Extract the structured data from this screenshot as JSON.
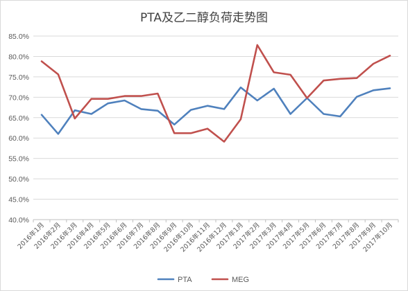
{
  "chart_data": {
    "type": "line",
    "title": "PTA及乙二醇负荷走势图",
    "xlabel": "",
    "ylabel": "",
    "ylim": [
      40,
      85
    ],
    "ytick_step": 5,
    "y_format": "percent_1dp",
    "grid": true,
    "legend_position": "bottom",
    "categories": [
      "2016年1月",
      "2016年2月",
      "2016年3月",
      "2016年4月",
      "2016年5月",
      "2016年6月",
      "2016年7月",
      "2016年8月",
      "2016年9月",
      "2016年10月",
      "2016年11月",
      "2016年12月",
      "2017年1月",
      "2017年2月",
      "2017年3月",
      "2017年4月",
      "2017年5月",
      "2017年6月",
      "2017年7月",
      "2017年8月",
      "2017年9月",
      "2017年10月"
    ],
    "series": [
      {
        "name": "PTA",
        "color": "#4f81bd",
        "values": [
          65.7,
          61.0,
          66.8,
          65.9,
          68.5,
          69.2,
          67.1,
          66.7,
          63.3,
          66.9,
          67.9,
          67.1,
          72.4,
          69.2,
          72.1,
          65.9,
          69.8,
          65.9,
          65.3,
          70.1,
          71.7,
          72.2
        ]
      },
      {
        "name": "MEG",
        "color": "#c0504d",
        "values": [
          78.8,
          75.6,
          64.8,
          69.6,
          69.6,
          70.3,
          70.3,
          70.9,
          61.2,
          61.2,
          62.3,
          59.1,
          64.6,
          82.8,
          76.1,
          75.5,
          69.8,
          74.1,
          74.5,
          74.7,
          78.2,
          80.2
        ]
      }
    ]
  }
}
